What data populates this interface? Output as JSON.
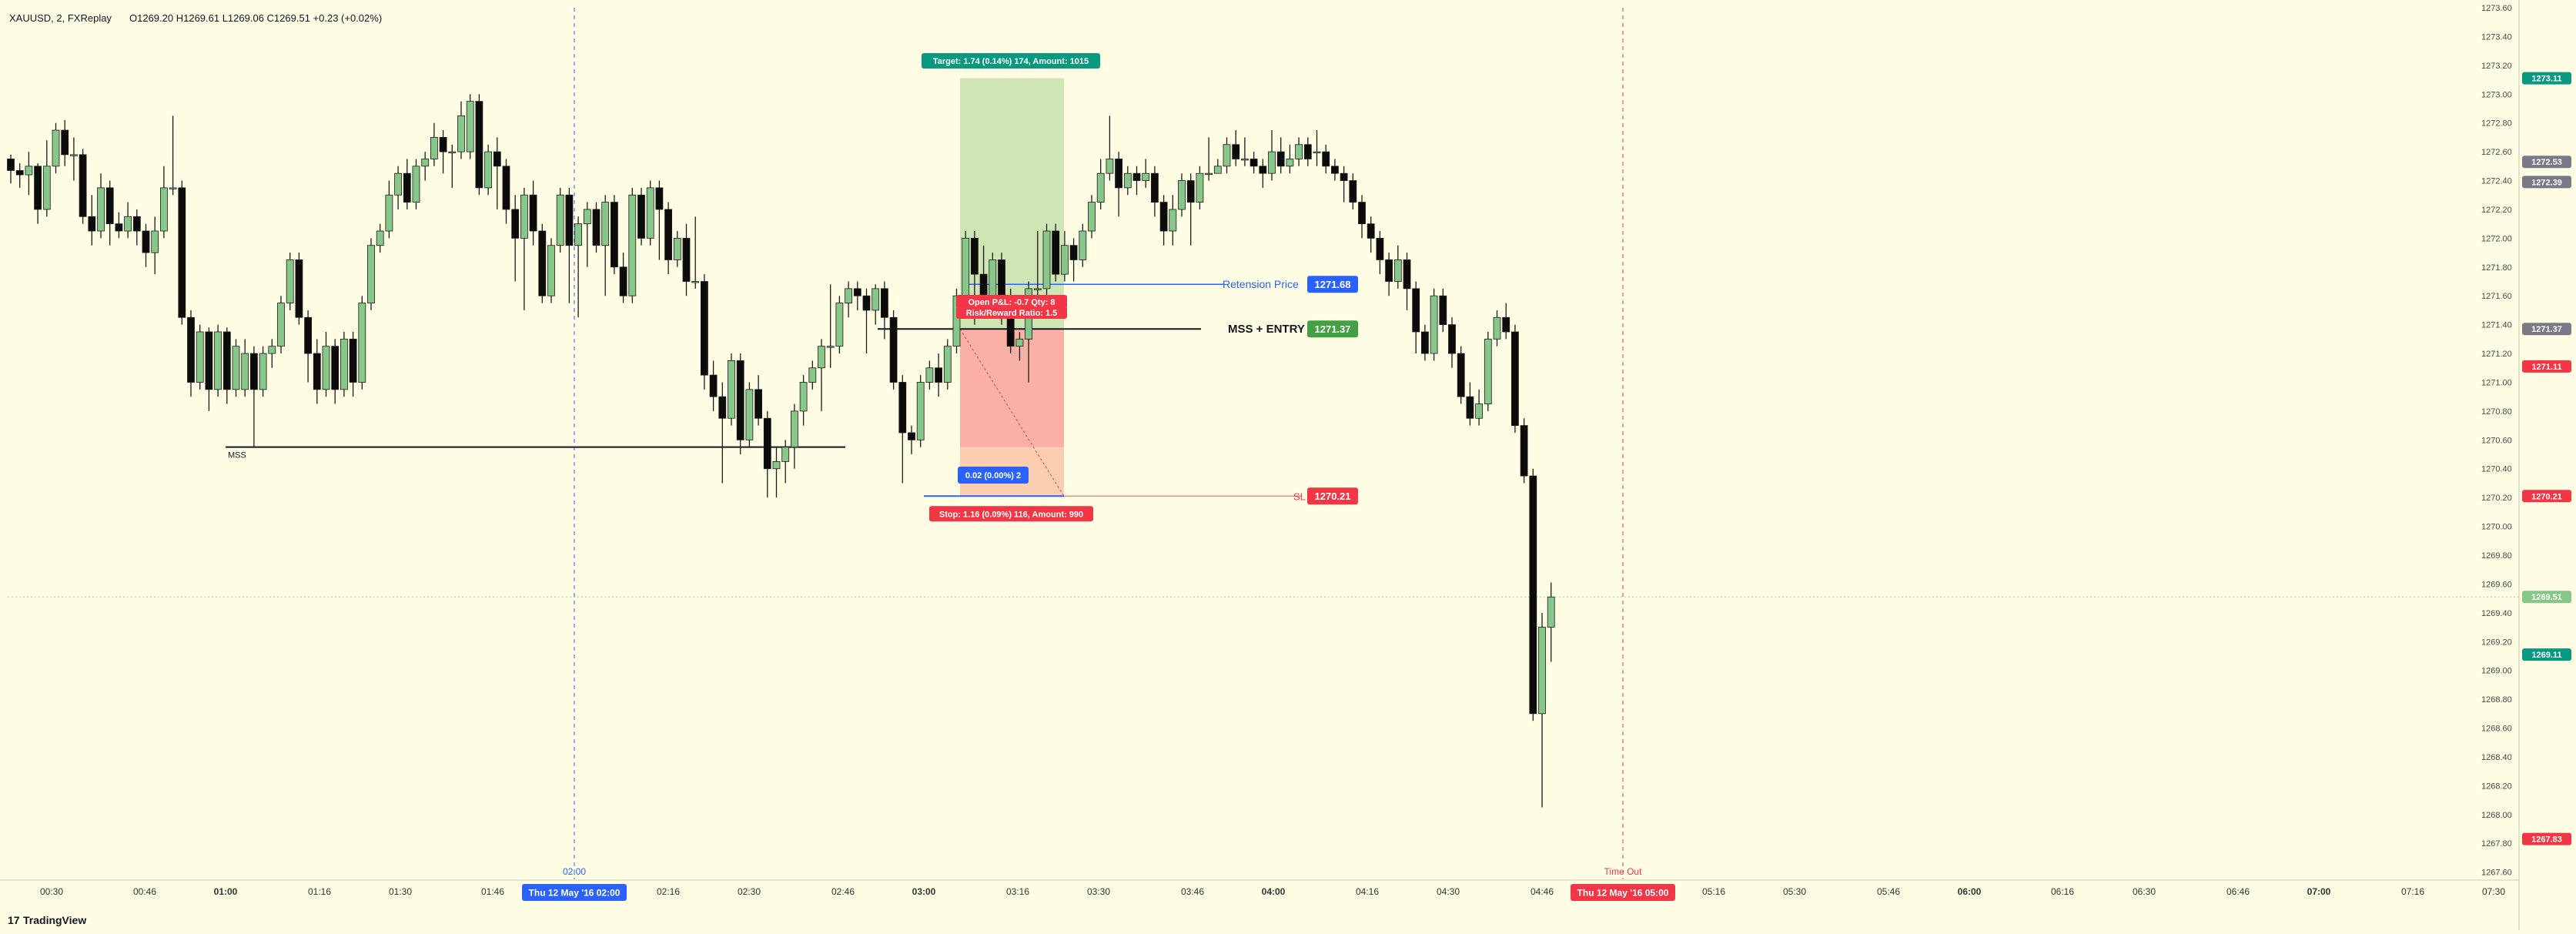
{
  "legend": {
    "symbol": "XAUUSD, 2, FXReplay",
    "ohlc": "O1269.20  H1269.61  L1269.06  C1269.51  +0.23 (+0.02%)"
  },
  "colors": {
    "background": "#fffde3",
    "up": "#88c78a",
    "down": "#0b0b0b",
    "target_zone": "#cfe6b4",
    "stop_zone": "#f9a99d",
    "entry_blue": "#2962ff",
    "sl_red": "#f23645",
    "mss_green": "#43a047",
    "teal": "#089981",
    "gray_tag": "#787b86",
    "time_line": "#2962ff",
    "timeout_line": "#f23645"
  },
  "branding": {
    "logo_text": "TradingView"
  },
  "chart_data": {
    "type": "candlestick",
    "y_axis": {
      "range": [
        1267.55,
        1273.6
      ],
      "ticks": [
        "1273.60",
        "1273.40",
        "1273.20",
        "1273.00",
        "1272.80",
        "1272.60",
        "1272.40",
        "1272.20",
        "1272.00",
        "1271.80",
        "1271.60",
        "1271.40",
        "1271.20",
        "1271.00",
        "1270.80",
        "1270.60",
        "1270.40",
        "1270.20",
        "1270.00",
        "1269.80",
        "1269.60",
        "1269.40",
        "1269.20",
        "1269.00",
        "1268.80",
        "1268.60",
        "1268.40",
        "1268.20",
        "1268.00",
        "1267.80",
        "1267.60"
      ],
      "price_tags": [
        {
          "label": "1273.11",
          "value": 1273.11,
          "color": "#089981"
        },
        {
          "label": "1272.53",
          "value": 1272.53,
          "color": "#787b86"
        },
        {
          "label": "1272.39",
          "value": 1272.39,
          "color": "#787b86"
        },
        {
          "label": "1271.37",
          "value": 1271.37,
          "color": "#787b86"
        },
        {
          "label": "1271.11",
          "value": 1271.11,
          "color": "#f23645"
        },
        {
          "label": "1270.21",
          "value": 1270.21,
          "color": "#f23645"
        },
        {
          "label": "1269.51",
          "value": 1269.51,
          "color": "#88c78a"
        },
        {
          "label": "1269.11",
          "value": 1269.11,
          "color": "#089981"
        },
        {
          "label": "1267.83",
          "value": 1267.83,
          "color": "#f23645"
        }
      ]
    },
    "x_axis": {
      "ticks": [
        "00:30",
        "00:46",
        "01:00",
        "01:16",
        "01:30",
        "01:46",
        "02:16",
        "02:30",
        "02:46",
        "03:00",
        "03:16",
        "03:30",
        "03:46",
        "04:00",
        "04:16",
        "04:30",
        "04:46",
        "05:16",
        "05:30",
        "05:46",
        "06:00",
        "06:16",
        "06:30",
        "06:46",
        "07:00",
        "07:16",
        "07:30"
      ],
      "bold_ticks": [
        "01:00",
        "03:00",
        "04:00",
        "06:00",
        "07:00"
      ],
      "highlight_labels": [
        {
          "label": "Thu 12 May '16   02:00",
          "color": "#2962ff"
        },
        {
          "label": "Thu 12 May '16   05:00",
          "color": "#f23645"
        }
      ]
    },
    "candles": [
      [
        1272.55,
        1272.47,
        1272.58,
        1272.38
      ],
      [
        1272.47,
        1272.44,
        1272.52,
        1272.35
      ],
      [
        1272.44,
        1272.5,
        1272.6,
        1272.3
      ],
      [
        1272.5,
        1272.2,
        1272.52,
        1272.1
      ],
      [
        1272.2,
        1272.5,
        1272.68,
        1272.15
      ],
      [
        1272.5,
        1272.75,
        1272.8,
        1272.45
      ],
      [
        1272.75,
        1272.58,
        1272.82,
        1272.5
      ],
      [
        1272.58,
        1272.58,
        1272.7,
        1272.4
      ],
      [
        1272.58,
        1272.15,
        1272.62,
        1272.1
      ],
      [
        1272.15,
        1272.05,
        1272.3,
        1271.95
      ],
      [
        1272.05,
        1272.35,
        1272.45,
        1272.0
      ],
      [
        1272.35,
        1272.1,
        1272.4,
        1271.95
      ],
      [
        1272.1,
        1272.05,
        1272.18,
        1272.0
      ],
      [
        1272.05,
        1272.15,
        1272.25,
        1272.0
      ],
      [
        1272.15,
        1272.05,
        1272.2,
        1271.95
      ],
      [
        1272.05,
        1271.9,
        1272.1,
        1271.8
      ],
      [
        1271.9,
        1272.05,
        1272.15,
        1271.75
      ],
      [
        1272.05,
        1272.35,
        1272.5,
        1272.0
      ],
      [
        1272.35,
        1272.35,
        1272.85,
        1272.3
      ],
      [
        1272.35,
        1271.45,
        1272.4,
        1271.4
      ],
      [
        1271.45,
        1271.0,
        1271.5,
        1270.9
      ],
      [
        1271.0,
        1271.35,
        1271.4,
        1270.95
      ],
      [
        1271.35,
        1270.95,
        1271.38,
        1270.8
      ],
      [
        1270.95,
        1271.35,
        1271.4,
        1270.9
      ],
      [
        1271.35,
        1270.95,
        1271.38,
        1270.85
      ],
      [
        1270.95,
        1271.25,
        1271.3,
        1270.9
      ],
      [
        1270.95,
        1271.2,
        1271.3,
        1270.9
      ],
      [
        1271.2,
        1270.95,
        1271.25,
        1270.55
      ],
      [
        1270.95,
        1271.2,
        1271.25,
        1270.9
      ],
      [
        1271.2,
        1271.25,
        1271.3,
        1271.1
      ],
      [
        1271.25,
        1271.55,
        1271.6,
        1271.2
      ],
      [
        1271.55,
        1271.85,
        1271.9,
        1271.5
      ],
      [
        1271.85,
        1271.45,
        1271.9,
        1271.4
      ],
      [
        1271.45,
        1271.2,
        1271.5,
        1271.0
      ],
      [
        1271.2,
        1270.95,
        1271.3,
        1270.85
      ],
      [
        1270.95,
        1271.25,
        1271.35,
        1270.9
      ],
      [
        1271.25,
        1270.95,
        1271.3,
        1270.85
      ],
      [
        1270.95,
        1271.3,
        1271.35,
        1270.9
      ],
      [
        1271.3,
        1271.0,
        1271.35,
        1270.9
      ],
      [
        1271.0,
        1271.55,
        1271.6,
        1270.95
      ],
      [
        1271.55,
        1271.95,
        1272.0,
        1271.5
      ],
      [
        1271.95,
        1272.05,
        1272.1,
        1271.9
      ],
      [
        1272.05,
        1272.3,
        1272.4,
        1272.0
      ],
      [
        1272.3,
        1272.45,
        1272.5,
        1272.2
      ],
      [
        1272.45,
        1272.25,
        1272.55,
        1272.2
      ],
      [
        1272.25,
        1272.5,
        1272.55,
        1272.2
      ],
      [
        1272.5,
        1272.55,
        1272.6,
        1272.4
      ],
      [
        1272.55,
        1272.7,
        1272.8,
        1272.5
      ],
      [
        1272.7,
        1272.6,
        1272.75,
        1272.45
      ],
      [
        1272.6,
        1272.6,
        1272.65,
        1272.35
      ],
      [
        1272.6,
        1272.85,
        1272.95,
        1272.55
      ],
      [
        1272.6,
        1272.95,
        1273.0,
        1272.55
      ],
      [
        1272.95,
        1272.35,
        1273.0,
        1272.3
      ],
      [
        1272.35,
        1272.6,
        1272.65,
        1272.3
      ],
      [
        1272.6,
        1272.5,
        1272.7,
        1272.2
      ],
      [
        1272.5,
        1272.2,
        1272.55,
        1272.1
      ],
      [
        1272.2,
        1272.0,
        1272.3,
        1271.7
      ],
      [
        1272.0,
        1272.3,
        1272.35,
        1271.5
      ],
      [
        1272.3,
        1272.05,
        1272.4,
        1271.95
      ],
      [
        1272.05,
        1271.6,
        1272.1,
        1271.55
      ],
      [
        1271.6,
        1271.95,
        1272.0,
        1271.55
      ],
      [
        1271.95,
        1272.3,
        1272.35,
        1271.9
      ],
      [
        1272.3,
        1271.95,
        1272.35,
        1271.55
      ],
      [
        1271.95,
        1272.1,
        1272.15,
        1271.45
      ],
      [
        1272.1,
        1272.2,
        1272.25,
        1271.8
      ],
      [
        1272.2,
        1271.95,
        1272.25,
        1271.9
      ],
      [
        1271.95,
        1272.25,
        1272.3,
        1271.6
      ],
      [
        1272.25,
        1271.8,
        1272.3,
        1271.75
      ],
      [
        1271.8,
        1271.6,
        1271.9,
        1271.55
      ],
      [
        1271.6,
        1272.3,
        1272.35,
        1271.55
      ],
      [
        1272.3,
        1272.0,
        1272.35,
        1271.95
      ],
      [
        1272.0,
        1272.35,
        1272.4,
        1271.95
      ],
      [
        1272.35,
        1272.2,
        1272.4,
        1271.85
      ],
      [
        1272.2,
        1271.85,
        1272.25,
        1271.75
      ],
      [
        1271.85,
        1272.0,
        1272.05,
        1271.8
      ],
      [
        1272.0,
        1271.7,
        1272.1,
        1271.6
      ],
      [
        1271.7,
        1271.7,
        1272.15,
        1271.65
      ],
      [
        1271.7,
        1271.05,
        1271.75,
        1270.95
      ],
      [
        1271.05,
        1270.9,
        1271.15,
        1270.8
      ],
      [
        1270.9,
        1270.75,
        1271.0,
        1270.3
      ],
      [
        1270.75,
        1271.15,
        1271.2,
        1270.7
      ],
      [
        1271.15,
        1270.6,
        1271.2,
        1270.5
      ],
      [
        1270.6,
        1270.95,
        1271.0,
        1270.55
      ],
      [
        1270.95,
        1270.75,
        1271.05,
        1270.7
      ],
      [
        1270.75,
        1270.4,
        1270.8,
        1270.2
      ],
      [
        1270.4,
        1270.45,
        1270.55,
        1270.2
      ],
      [
        1270.45,
        1270.55,
        1270.6,
        1270.3
      ],
      [
        1270.55,
        1270.8,
        1270.85,
        1270.4
      ],
      [
        1270.8,
        1271.0,
        1271.05,
        1270.7
      ],
      [
        1271.0,
        1271.1,
        1271.15,
        1270.95
      ],
      [
        1271.1,
        1271.25,
        1271.3,
        1270.8
      ],
      [
        1271.25,
        1271.25,
        1271.68,
        1271.1
      ],
      [
        1271.25,
        1271.55,
        1271.6,
        1271.2
      ],
      [
        1271.55,
        1271.65,
        1271.7,
        1271.45
      ],
      [
        1271.65,
        1271.6,
        1271.7,
        1271.5
      ],
      [
        1271.6,
        1271.5,
        1271.65,
        1271.2
      ],
      [
        1271.5,
        1271.65,
        1271.68,
        1271.4
      ],
      [
        1271.65,
        1271.45,
        1271.7,
        1271.3
      ],
      [
        1271.45,
        1271.0,
        1271.5,
        1270.95
      ],
      [
        1271.0,
        1270.65,
        1271.05,
        1270.3
      ],
      [
        1270.65,
        1270.6,
        1270.7,
        1270.5
      ],
      [
        1270.6,
        1271.0,
        1271.05,
        1270.55
      ],
      [
        1271.0,
        1271.1,
        1271.15,
        1270.95
      ],
      [
        1271.1,
        1271.0,
        1271.2,
        1270.9
      ],
      [
        1271.0,
        1271.25,
        1271.3,
        1270.95
      ],
      [
        1271.25,
        1271.6,
        1271.65,
        1271.2
      ],
      [
        1271.6,
        1272.0,
        1272.05,
        1271.55
      ],
      [
        1272.0,
        1271.75,
        1272.05,
        1271.4
      ],
      [
        1271.75,
        1271.6,
        1271.95,
        1271.55
      ],
      [
        1271.6,
        1271.85,
        1271.9,
        1271.55
      ],
      [
        1271.85,
        1271.6,
        1271.9,
        1271.4
      ],
      [
        1271.6,
        1271.25,
        1271.65,
        1271.2
      ],
      [
        1271.25,
        1271.3,
        1271.35,
        1271.15
      ],
      [
        1271.3,
        1271.65,
        1271.7,
        1271.0
      ],
      [
        1271.65,
        1271.65,
        1272.05,
        1271.6
      ],
      [
        1271.65,
        1272.05,
        1272.1,
        1271.6
      ],
      [
        1272.05,
        1271.75,
        1272.1,
        1271.7
      ],
      [
        1271.75,
        1271.95,
        1272.05,
        1271.7
      ],
      [
        1271.95,
        1271.85,
        1272.0,
        1271.7
      ],
      [
        1271.85,
        1272.05,
        1272.1,
        1271.8
      ],
      [
        1272.05,
        1272.25,
        1272.3,
        1272.0
      ],
      [
        1272.25,
        1272.45,
        1272.55,
        1272.2
      ],
      [
        1272.45,
        1272.55,
        1272.85,
        1272.4
      ],
      [
        1272.55,
        1272.35,
        1272.6,
        1272.15
      ],
      [
        1272.35,
        1272.45,
        1272.5,
        1272.3
      ],
      [
        1272.45,
        1272.4,
        1272.5,
        1272.3
      ],
      [
        1272.4,
        1272.45,
        1272.55,
        1272.35
      ],
      [
        1272.45,
        1272.25,
        1272.5,
        1272.15
      ],
      [
        1272.25,
        1272.05,
        1272.3,
        1271.95
      ],
      [
        1272.05,
        1272.2,
        1272.3,
        1271.95
      ],
      [
        1272.2,
        1272.4,
        1272.45,
        1272.15
      ],
      [
        1272.4,
        1272.25,
        1272.45,
        1271.95
      ],
      [
        1272.25,
        1272.45,
        1272.5,
        1272.2
      ],
      [
        1272.45,
        1272.45,
        1272.7,
        1272.4
      ],
      [
        1272.45,
        1272.5,
        1272.55,
        1272.45
      ],
      [
        1272.5,
        1272.65,
        1272.7,
        1272.45
      ],
      [
        1272.65,
        1272.55,
        1272.75,
        1272.5
      ],
      [
        1272.55,
        1272.55,
        1272.7,
        1272.5
      ],
      [
        1272.55,
        1272.5,
        1272.6,
        1272.45
      ],
      [
        1272.5,
        1272.45,
        1272.55,
        1272.35
      ],
      [
        1272.45,
        1272.6,
        1272.75,
        1272.4
      ],
      [
        1272.6,
        1272.5,
        1272.7,
        1272.45
      ],
      [
        1272.5,
        1272.55,
        1272.65,
        1272.45
      ],
      [
        1272.55,
        1272.65,
        1272.7,
        1272.5
      ],
      [
        1272.65,
        1272.55,
        1272.7,
        1272.5
      ],
      [
        1272.6,
        1272.6,
        1272.75,
        1272.5
      ],
      [
        1272.6,
        1272.5,
        1272.65,
        1272.45
      ],
      [
        1272.5,
        1272.45,
        1272.55,
        1272.4
      ],
      [
        1272.45,
        1272.4,
        1272.5,
        1272.25
      ],
      [
        1272.4,
        1272.25,
        1272.45,
        1272.2
      ],
      [
        1272.25,
        1272.1,
        1272.3,
        1272.0
      ],
      [
        1272.1,
        1272.0,
        1272.15,
        1271.9
      ],
      [
        1272.0,
        1271.85,
        1272.05,
        1271.75
      ],
      [
        1271.85,
        1271.7,
        1271.9,
        1271.6
      ],
      [
        1271.7,
        1271.85,
        1271.95,
        1271.65
      ],
      [
        1271.85,
        1271.65,
        1271.9,
        1271.5
      ],
      [
        1271.65,
        1271.35,
        1271.7,
        1271.2
      ],
      [
        1271.35,
        1271.2,
        1271.4,
        1271.15
      ],
      [
        1271.2,
        1271.6,
        1271.65,
        1271.15
      ],
      [
        1271.6,
        1271.4,
        1271.65,
        1271.35
      ],
      [
        1271.4,
        1271.2,
        1271.45,
        1271.1
      ],
      [
        1271.2,
        1270.9,
        1271.25,
        1270.85
      ],
      [
        1270.9,
        1270.75,
        1271.0,
        1270.7
      ],
      [
        1270.75,
        1270.85,
        1270.95,
        1270.7
      ],
      [
        1270.85,
        1271.3,
        1271.35,
        1270.8
      ],
      [
        1271.3,
        1271.45,
        1271.5,
        1271.25
      ],
      [
        1271.45,
        1271.35,
        1271.55,
        1271.3
      ],
      [
        1271.35,
        1270.7,
        1271.4,
        1270.65
      ],
      [
        1270.7,
        1270.35,
        1270.75,
        1270.3
      ],
      [
        1270.35,
        1268.7,
        1270.4,
        1268.65
      ],
      [
        1268.7,
        1269.3,
        1269.4,
        1268.05
      ],
      [
        1269.3,
        1269.51,
        1269.61,
        1269.06
      ]
    ],
    "lines": [
      {
        "label": "MSS",
        "price": 1270.55
      },
      {
        "label": "MSS + ENTRY",
        "price": 1271.37,
        "tag": "1271.37"
      },
      {
        "label": "Retension Price",
        "price": 1271.68,
        "tag": "1271.68"
      },
      {
        "label": "SL",
        "price": 1270.21,
        "tag": "1270.21"
      }
    ],
    "position": {
      "entry": 1271.37,
      "target": 1273.11,
      "stop": 1270.21,
      "target_label": "Target: 1.74 (0.14%) 174, Amount: 1015",
      "stop_label": "Stop: 1.16 (0.09%) 116, Amount: 990",
      "open_pnl_label": "Open P&L: -0.7   Qty: 8",
      "rr_label": "Risk/Reward Ratio: 1.5",
      "mid_label": "0.02 (0.00%) 2"
    },
    "vertical_markers": [
      {
        "label": "02:00",
        "kind": "time"
      },
      {
        "label": "Time Out",
        "kind": "timeout"
      }
    ]
  }
}
